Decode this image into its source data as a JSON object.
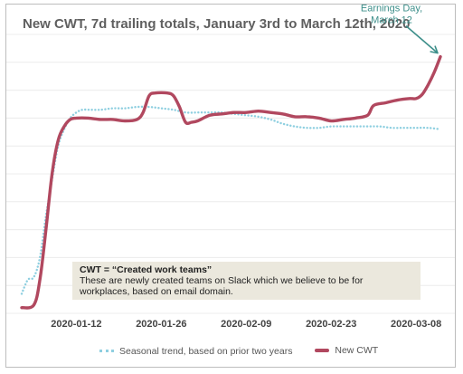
{
  "chart_data": {
    "type": "line",
    "title": "New CWT, 7d trailing totals, January 3rd to March 12th, 2020",
    "xlabel": "",
    "ylabel": "",
    "x_start": "2020-01-03",
    "x_end": "2020-03-12",
    "x_ticks": [
      "2020-01-12",
      "2020-01-26",
      "2020-02-09",
      "2020-02-23",
      "2020-03-08"
    ],
    "ylim": [
      0,
      100
    ],
    "grid": "horizontal",
    "legend_position": "bottom",
    "series": [
      {
        "name": "Seasonal trend, based on prior two years",
        "style": "dotted",
        "color": "#8ecfe0",
        "points": [
          [
            "2020-01-03",
            7
          ],
          [
            "2020-01-04",
            12
          ],
          [
            "2020-01-05",
            13
          ],
          [
            "2020-01-06",
            20
          ],
          [
            "2020-01-07",
            35
          ],
          [
            "2020-01-08",
            48
          ],
          [
            "2020-01-09",
            60
          ],
          [
            "2020-01-10",
            66
          ],
          [
            "2020-01-11",
            70
          ],
          [
            "2020-01-12",
            72
          ],
          [
            "2020-01-13",
            73
          ],
          [
            "2020-01-14",
            73
          ],
          [
            "2020-01-16",
            73
          ],
          [
            "2020-01-18",
            73.5
          ],
          [
            "2020-01-20",
            73.5
          ],
          [
            "2020-01-22",
            74
          ],
          [
            "2020-01-24",
            74
          ],
          [
            "2020-01-26",
            73.5
          ],
          [
            "2020-01-28",
            73
          ],
          [
            "2020-01-30",
            72
          ],
          [
            "2020-02-01",
            72
          ],
          [
            "2020-02-03",
            72
          ],
          [
            "2020-02-05",
            72
          ],
          [
            "2020-02-07",
            71.5
          ],
          [
            "2020-02-09",
            71
          ],
          [
            "2020-02-11",
            70.5
          ],
          [
            "2020-02-13",
            69.5
          ],
          [
            "2020-02-15",
            68
          ],
          [
            "2020-02-17",
            67
          ],
          [
            "2020-02-19",
            66.5
          ],
          [
            "2020-02-21",
            66.5
          ],
          [
            "2020-02-23",
            67
          ],
          [
            "2020-02-25",
            67
          ],
          [
            "2020-02-27",
            67
          ],
          [
            "2020-02-29",
            67
          ],
          [
            "2020-03-02",
            67
          ],
          [
            "2020-03-04",
            66.5
          ],
          [
            "2020-03-06",
            66.5
          ],
          [
            "2020-03-08",
            66.5
          ],
          [
            "2020-03-10",
            66.5
          ],
          [
            "2020-03-12",
            66
          ]
        ]
      },
      {
        "name": "New CWT",
        "style": "solid",
        "color": "#b1485f",
        "points": [
          [
            "2020-01-03",
            2
          ],
          [
            "2020-01-05",
            3
          ],
          [
            "2020-01-06",
            12
          ],
          [
            "2020-01-07",
            30
          ],
          [
            "2020-01-08",
            50
          ],
          [
            "2020-01-09",
            62
          ],
          [
            "2020-01-10",
            67
          ],
          [
            "2020-01-11",
            69.5
          ],
          [
            "2020-01-12",
            70
          ],
          [
            "2020-01-14",
            70
          ],
          [
            "2020-01-16",
            69.5
          ],
          [
            "2020-01-18",
            69.5
          ],
          [
            "2020-01-20",
            69
          ],
          [
            "2020-01-22",
            69.5
          ],
          [
            "2020-01-23",
            72
          ],
          [
            "2020-01-24",
            78
          ],
          [
            "2020-01-25",
            79
          ],
          [
            "2020-01-27",
            79
          ],
          [
            "2020-01-28",
            78
          ],
          [
            "2020-01-29",
            74
          ],
          [
            "2020-01-30",
            68.5
          ],
          [
            "2020-01-31",
            68.5
          ],
          [
            "2020-02-01",
            69
          ],
          [
            "2020-02-03",
            71
          ],
          [
            "2020-02-05",
            71.5
          ],
          [
            "2020-02-07",
            72
          ],
          [
            "2020-02-09",
            72
          ],
          [
            "2020-02-11",
            72.5
          ],
          [
            "2020-02-13",
            72
          ],
          [
            "2020-02-15",
            71.5
          ],
          [
            "2020-02-17",
            70.5
          ],
          [
            "2020-02-19",
            70.5
          ],
          [
            "2020-02-21",
            70
          ],
          [
            "2020-02-23",
            69
          ],
          [
            "2020-02-25",
            69.5
          ],
          [
            "2020-02-27",
            70
          ],
          [
            "2020-02-29",
            71
          ],
          [
            "2020-03-01",
            74.5
          ],
          [
            "2020-03-03",
            75.5
          ],
          [
            "2020-03-05",
            76.5
          ],
          [
            "2020-03-07",
            77
          ],
          [
            "2020-03-08",
            77
          ],
          [
            "2020-03-09",
            78.5
          ],
          [
            "2020-03-10",
            82
          ],
          [
            "2020-03-11",
            86.5
          ],
          [
            "2020-03-12",
            92
          ]
        ]
      }
    ],
    "annotations": [
      {
        "text_lines": [
          "Earnings Day,",
          "March 12"
        ],
        "target_date": "2020-03-12",
        "target_value": 92
      }
    ]
  },
  "note": {
    "heading": "CWT = “Created work teams”",
    "body": "These are newly created teams on Slack which we believe to be for workplaces, based on email domain."
  },
  "legend": [
    {
      "label": "Seasonal trend, based on prior two years",
      "style": "dotted",
      "color": "#8ecfe0"
    },
    {
      "label": "New CWT",
      "style": "solid",
      "color": "#b1485f"
    }
  ]
}
